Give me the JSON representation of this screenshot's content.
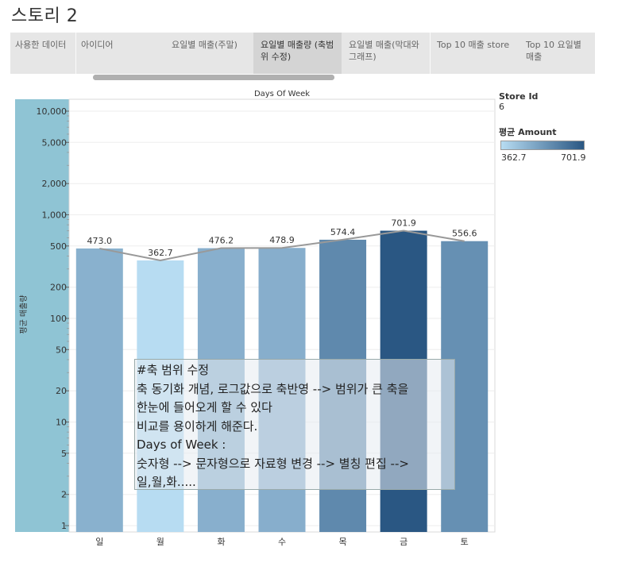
{
  "story": {
    "title": "스토리 2",
    "tabs": [
      {
        "label": "사용한 데이터",
        "active": false
      },
      {
        "label": "아이디어",
        "active": false
      },
      {
        "label": "요일별 매출(주말)",
        "active": false
      },
      {
        "label": "요일별 매출량 (축범위 수정)",
        "active": true
      },
      {
        "label": "요일별 매출(막대와 그래프)",
        "active": false
      },
      {
        "label": "Top 10 매출 store",
        "active": false
      },
      {
        "label": "Top 10 요일별 매출",
        "active": false
      }
    ]
  },
  "legend": {
    "filter_label": "Store Id",
    "filter_value": "6",
    "color_label": "평균 Amount",
    "color_min": "362.7",
    "color_max": "701.9",
    "color_range": [
      "#b7dcf2",
      "#2a5783"
    ]
  },
  "annotation": {
    "lines": [
      "#축 범위 수정",
      "축 동기화 개념, 로그값으로 축반영 --> 범위가 큰 축을",
      "한눈에 들어오게 할 수 있다",
      "비교를 용이하게 해준다.",
      "Days of Week :",
      "숫자형 --> 문자형으로 자료형 변경 --> 별칭 편집 -->",
      "일,월,화....."
    ]
  },
  "chart_data": {
    "type": "bar",
    "title": "Days Of Week",
    "ylabel": "평균 매출량",
    "xlabel": "",
    "yscale": "log",
    "ylim": [
      1,
      10000
    ],
    "yticks": [
      1,
      2,
      5,
      10,
      20,
      50,
      100,
      200,
      500,
      1000,
      2000,
      5000,
      10000
    ],
    "ytick_labels": [
      "1",
      "2",
      "5",
      "10",
      "20",
      "50",
      "100",
      "200",
      "500",
      "1,000",
      "2,000",
      "5,000",
      "10,000"
    ],
    "categories": [
      "일",
      "월",
      "화",
      "수",
      "목",
      "금",
      "토"
    ],
    "values": [
      473.0,
      362.7,
      476.2,
      478.9,
      574.4,
      701.9,
      556.6
    ],
    "labels": [
      "473.0",
      "362.7",
      "476.2",
      "478.9",
      "574.4",
      "701.9",
      "556.6"
    ],
    "line_overlay": true,
    "line_color": "#999999",
    "y_axis_band_color": "#8fc4d4"
  }
}
